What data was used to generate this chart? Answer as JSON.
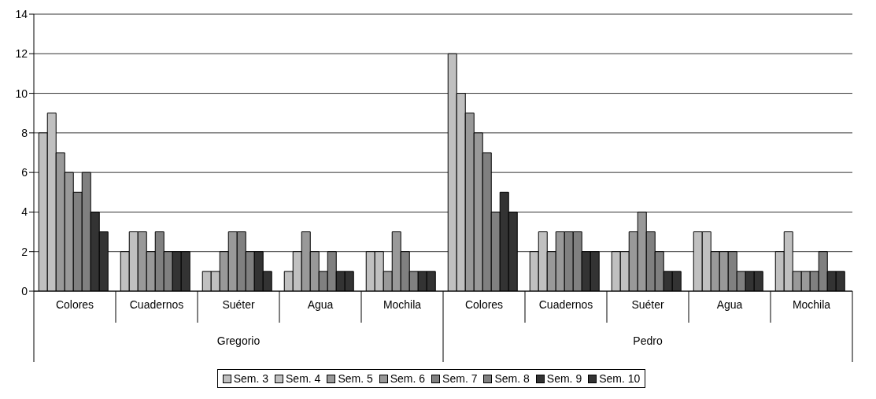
{
  "chart_data": {
    "type": "bar",
    "categories": [
      "Colores",
      "Cuadernos",
      "Suéter",
      "Agua",
      "Mochila",
      "Colores",
      "Cuadernos",
      "Suéter",
      "Agua",
      "Mochila"
    ],
    "annotations": [
      "Gregorio",
      "Pedro"
    ],
    "series": [
      {
        "name": "Sem. 3",
        "color": "#c0c0c0",
        "values": [
          8,
          2,
          1,
          1,
          2,
          12,
          2,
          2,
          3,
          2
        ]
      },
      {
        "name": "Sem. 4",
        "color": "#c0c0c0",
        "values": [
          9,
          3,
          1,
          2,
          2,
          10,
          3,
          2,
          3,
          3
        ]
      },
      {
        "name": "Sem. 5",
        "color": "#999999",
        "values": [
          7,
          3,
          2,
          3,
          1,
          9,
          2,
          3,
          2,
          1
        ]
      },
      {
        "name": "Sem. 6",
        "color": "#999999",
        "values": [
          6,
          2,
          3,
          2,
          3,
          8,
          3,
          4,
          2,
          1
        ]
      },
      {
        "name": "Sem. 7",
        "color": "#808080",
        "values": [
          5,
          3,
          3,
          1,
          2,
          7,
          3,
          3,
          2,
          1
        ]
      },
      {
        "name": "Sem. 8",
        "color": "#808080",
        "values": [
          6,
          2,
          2,
          2,
          1,
          4,
          3,
          2,
          1,
          2
        ]
      },
      {
        "name": "Sem. 9",
        "color": "#333333",
        "values": [
          4,
          2,
          2,
          1,
          1,
          5,
          2,
          1,
          1,
          1
        ]
      },
      {
        "name": "Sem. 10",
        "color": "#333333",
        "values": [
          3,
          2,
          1,
          1,
          1,
          4,
          2,
          1,
          1,
          1
        ]
      }
    ],
    "ylim": [
      0,
      14
    ],
    "yticks": [
      0,
      2,
      4,
      6,
      8,
      10,
      12,
      14
    ],
    "grid": "y",
    "legend": "bottom"
  }
}
